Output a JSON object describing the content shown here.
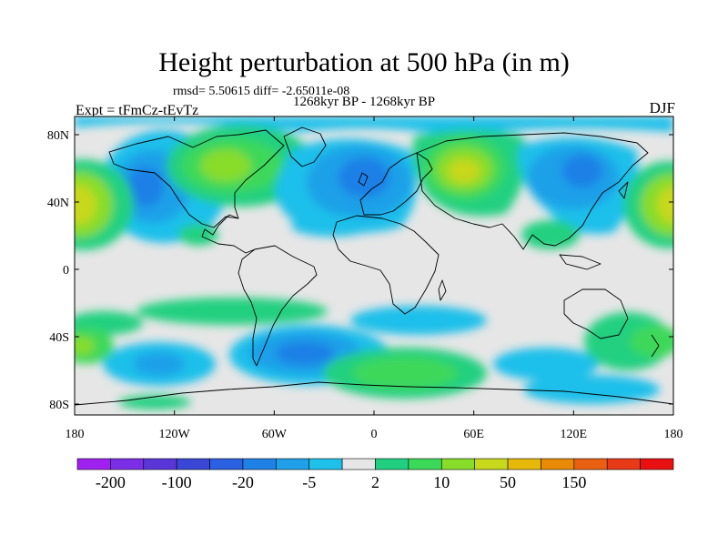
{
  "title": "Height perturbation at 500 hPa (in m)",
  "stats": "rmsd= 5.50615 diff= -2.65011e-08",
  "period": "1268kyr BP - 1268kyr BP",
  "experiment": "Expt = tFmCz-tEvTz",
  "season": "DJF",
  "lat_ticks": [
    {
      "label": "80N",
      "lat": 80
    },
    {
      "label": "40N",
      "lat": 40
    },
    {
      "label": "0",
      "lat": 0
    },
    {
      "label": "40S",
      "lat": -40
    },
    {
      "label": "80S",
      "lat": -80
    }
  ],
  "lon_ticks": [
    {
      "label": "180",
      "lon": -180
    },
    {
      "label": "120W",
      "lon": -120
    },
    {
      "label": "60W",
      "lon": -60
    },
    {
      "label": "0",
      "lon": 0
    },
    {
      "label": "60E",
      "lon": 60
    },
    {
      "label": "120E",
      "lon": 120
    },
    {
      "label": "180",
      "lon": 180
    }
  ],
  "colorbar": {
    "colors": [
      "#a020f0",
      "#7b2ee6",
      "#5a36d9",
      "#3a46d6",
      "#2b60e3",
      "#1f80e6",
      "#1fa0e8",
      "#1fc0ea",
      "#e6e6e6",
      "#20d080",
      "#3cd85a",
      "#88dc2a",
      "#c8d81a",
      "#e6b80a",
      "#e88a06",
      "#e86010",
      "#e83a16",
      "#e81010"
    ],
    "labels": [
      {
        "text": "-200",
        "boundary": 1
      },
      {
        "text": "-100",
        "boundary": 3
      },
      {
        "text": "-20",
        "boundary": 5
      },
      {
        "text": "-5",
        "boundary": 7
      },
      {
        "text": "2",
        "boundary": 9
      },
      {
        "text": "10",
        "boundary": 11
      },
      {
        "text": "50",
        "boundary": 13
      },
      {
        "text": "150",
        "boundary": 15
      }
    ]
  }
}
